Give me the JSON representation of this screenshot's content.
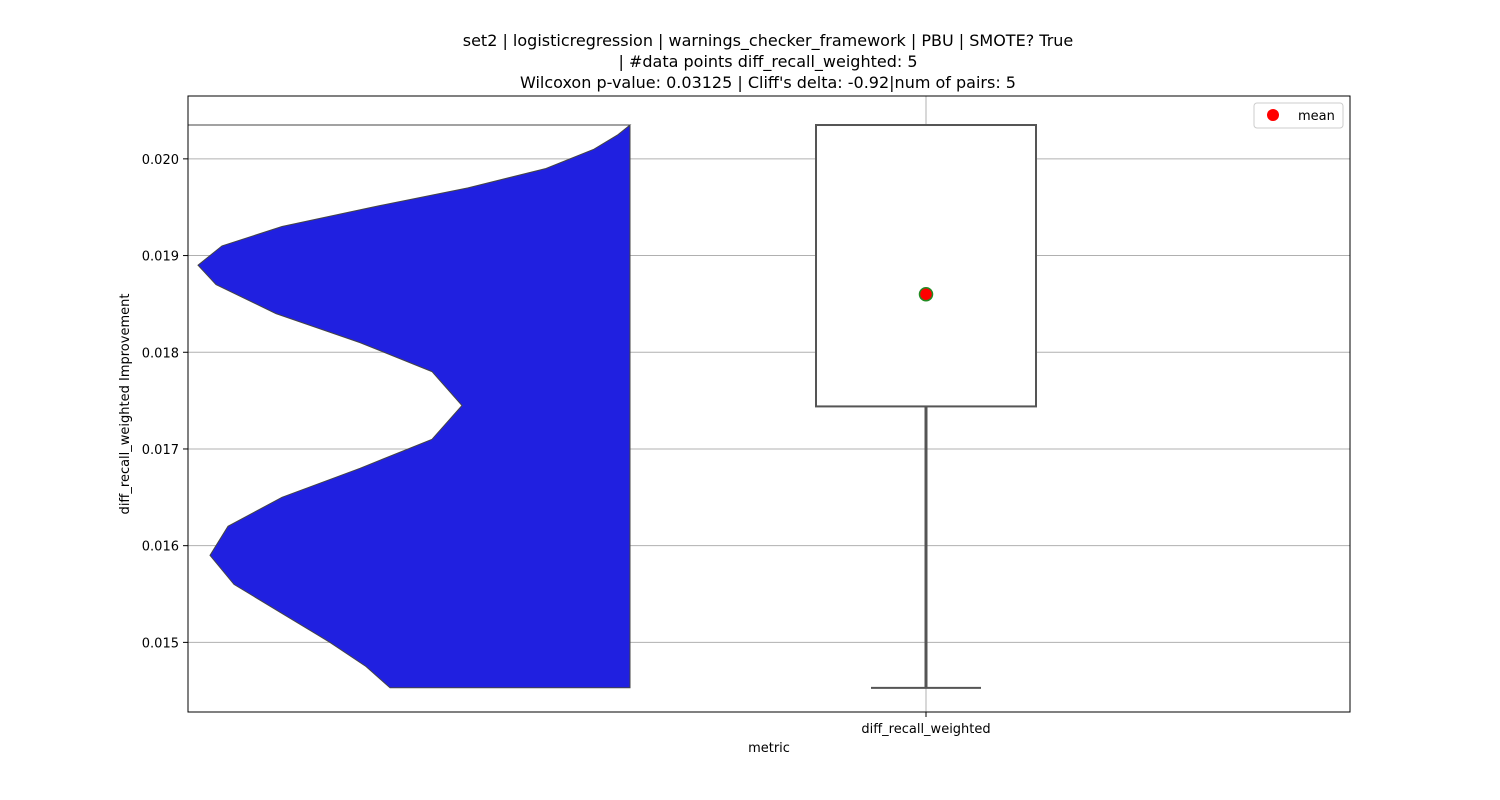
{
  "chart_data": {
    "type": "violin+box",
    "title_lines": [
      "set2 | logisticregression | warnings_checker_framework | PBU | SMOTE? True",
      "| #data points diff_recall_weighted: 5",
      "Wilcoxon p-value: 0.03125 | Cliff's delta: -0.92|num of pairs: 5"
    ],
    "xlabel": "metric",
    "ylabel": "diff_recall_weighted Improvement",
    "categories": [
      "diff_recall_weighted"
    ],
    "ylim": [
      0.01428,
      0.02065
    ],
    "yticks": [
      0.015,
      0.016,
      0.017,
      0.018,
      0.019,
      0.02
    ],
    "ytick_labels": [
      "0.015",
      "0.016",
      "0.017",
      "0.018",
      "0.019",
      "0.020"
    ],
    "grid": true,
    "legend": {
      "placement": "top-right",
      "entries": [
        {
          "label": "mean",
          "color": "#ff0000"
        }
      ]
    },
    "violin": {
      "color": "#2020e0",
      "y_range": [
        0.01453,
        0.02035
      ],
      "density_profile": [
        [
          0.01453,
          0.4
        ],
        [
          0.01475,
          0.44
        ],
        [
          0.015,
          0.5
        ],
        [
          0.0153,
          0.58
        ],
        [
          0.0156,
          0.66
        ],
        [
          0.0159,
          0.7
        ],
        [
          0.0162,
          0.67
        ],
        [
          0.0165,
          0.58
        ],
        [
          0.0168,
          0.45
        ],
        [
          0.0171,
          0.33
        ],
        [
          0.01745,
          0.28
        ],
        [
          0.0178,
          0.33
        ],
        [
          0.0181,
          0.45
        ],
        [
          0.0184,
          0.59
        ],
        [
          0.0187,
          0.69
        ],
        [
          0.0189,
          0.72
        ],
        [
          0.0191,
          0.68
        ],
        [
          0.0193,
          0.58
        ],
        [
          0.0195,
          0.43
        ],
        [
          0.0197,
          0.27
        ],
        [
          0.0199,
          0.14
        ],
        [
          0.0201,
          0.06
        ],
        [
          0.02025,
          0.02
        ],
        [
          0.02035,
          0.0
        ]
      ]
    },
    "box": {
      "q1": 0.01744,
      "q3": 0.02035,
      "whisker_low": 0.01453,
      "whisker_high": 0.02035,
      "mean": 0.0186,
      "mean_color": "#ff0000",
      "mean_edge_color": "#228b22",
      "line_color": "#555555"
    }
  }
}
